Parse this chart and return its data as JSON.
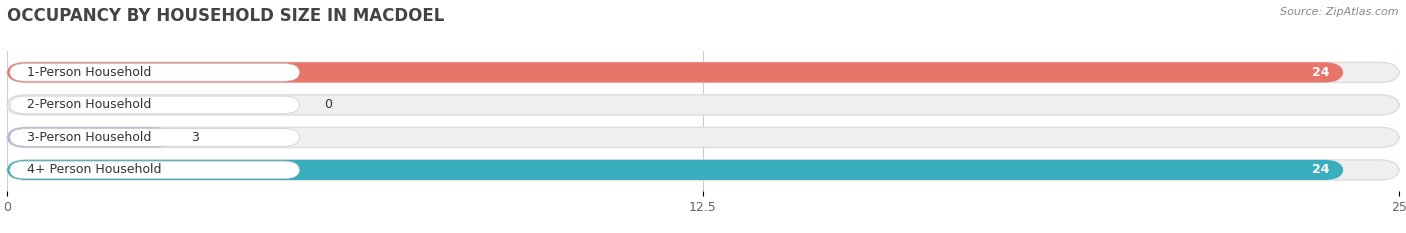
{
  "title": "OCCUPANCY BY HOUSEHOLD SIZE IN MACDOEL",
  "source": "Source: ZipAtlas.com",
  "categories": [
    "1-Person Household",
    "2-Person Household",
    "3-Person Household",
    "4+ Person Household"
  ],
  "values": [
    24,
    0,
    3,
    24
  ],
  "bar_colors": [
    "#E8756A",
    "#A8C8E8",
    "#C4A8D4",
    "#3AADBE"
  ],
  "value_label_colors": [
    "white",
    "black",
    "black",
    "white"
  ],
  "xlim": [
    0,
    25
  ],
  "xticks": [
    0,
    12.5,
    25
  ],
  "bar_height": 0.62,
  "figsize": [
    14.06,
    2.33
  ],
  "dpi": 100,
  "bg_color": "#ffffff",
  "bar_bg_color": "#efefef",
  "bar_bg_outline": "#dddddd",
  "title_fontsize": 12,
  "source_fontsize": 8,
  "label_fontsize": 9,
  "value_fontsize": 9,
  "label_box_color": "#ffffff",
  "label_text_color": "#333333"
}
